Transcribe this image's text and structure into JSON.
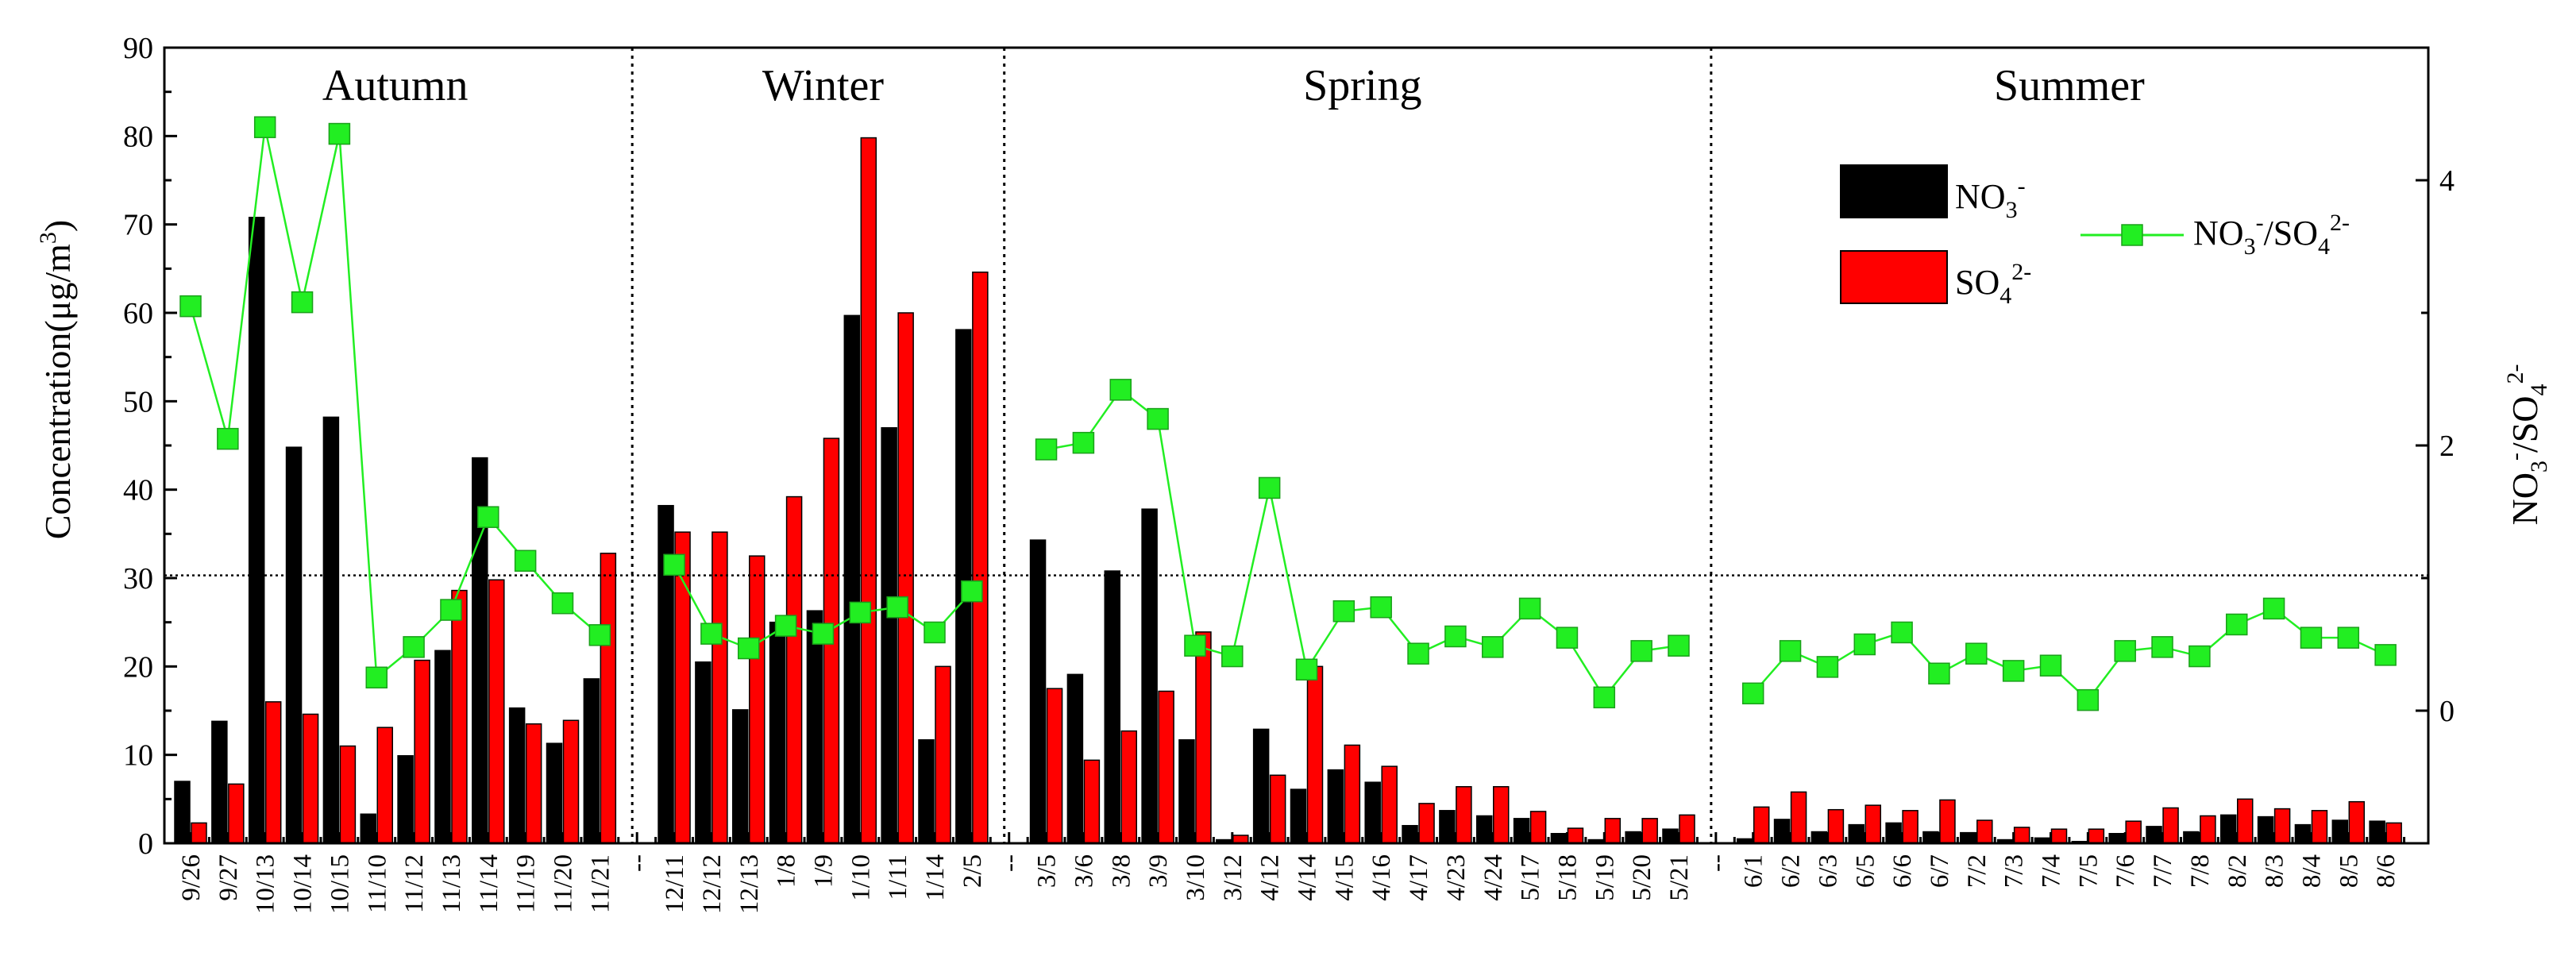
{
  "chart_data": {
    "type": "bar",
    "categories": [
      "9/26",
      "9/27",
      "10/13",
      "10/14",
      "10/15",
      "11/10",
      "11/12",
      "11/13",
      "11/14",
      "11/19",
      "11/20",
      "11/21",
      "--",
      "12/11",
      "12/12",
      "12/13",
      "1/8",
      "1/9",
      "1/10",
      "1/11",
      "1/14",
      "2/5",
      "--",
      "3/5",
      "3/6",
      "3/8",
      "3/9",
      "3/10",
      "3/12",
      "4/12",
      "4/14",
      "4/15",
      "4/16",
      "4/17",
      "4/23",
      "4/24",
      "5/17",
      "5/18",
      "5/19",
      "5/20",
      "5/21",
      "--",
      "6/1",
      "6/2",
      "6/3",
      "6/5",
      "6/6",
      "6/7",
      "7/2",
      "7/3",
      "7/4",
      "7/5",
      "7/6",
      "7/7",
      "7/8",
      "8/2",
      "8/3",
      "8/4",
      "8/5",
      "8/6"
    ],
    "series": [
      {
        "name": "NO3-",
        "axis": "left",
        "kind": "bar",
        "color": "#000000",
        "values": [
          7,
          13.8,
          70.8,
          44.8,
          48.2,
          3.3,
          9.9,
          21.8,
          43.6,
          15.3,
          11.3,
          18.6,
          null,
          38.2,
          20.5,
          15.1,
          25,
          26.3,
          59.7,
          47,
          11.7,
          58.1,
          null,
          34.3,
          19.1,
          30.8,
          37.8,
          11.7,
          0.4,
          12.9,
          6.1,
          8.3,
          6.9,
          2,
          3.7,
          3.1,
          2.8,
          1.1,
          0.4,
          1.3,
          1.6,
          null,
          0.5,
          2.7,
          1.3,
          2.1,
          2.3,
          1.3,
          1.2,
          0.4,
          0.6,
          0.2,
          1.1,
          1.9,
          1.3,
          3.2,
          3,
          2.1,
          2.6,
          2.5
        ]
      },
      {
        "name": "SO42-",
        "axis": "left",
        "kind": "bar",
        "color": "#ff0000",
        "values": [
          2.3,
          6.7,
          16,
          14.6,
          11,
          13.1,
          20.7,
          28.6,
          29.8,
          13.5,
          13.9,
          32.8,
          null,
          35.2,
          35.2,
          32.5,
          39.2,
          45.8,
          79.8,
          60,
          20,
          64.6,
          null,
          17.5,
          9.4,
          12.7,
          17.2,
          23.9,
          0.9,
          7.7,
          20,
          11.1,
          8.7,
          4.5,
          6.4,
          6.4,
          3.6,
          1.7,
          2.8,
          2.8,
          3.2,
          null,
          4.1,
          5.8,
          3.8,
          4.3,
          3.7,
          4.9,
          2.6,
          1.8,
          1.6,
          1.6,
          2.5,
          4,
          3.1,
          5,
          3.9,
          3.7,
          4.7,
          2.3
        ]
      },
      {
        "name": "NO3-/SO42-",
        "axis": "right",
        "kind": "line",
        "color": "#22ee22",
        "segments": [
          [
            0,
            11
          ],
          [
            13,
            21
          ],
          [
            23,
            40
          ],
          [
            42,
            59
          ]
        ],
        "values": [
          3.05,
          2.05,
          4.4,
          3.08,
          4.35,
          0.25,
          0.48,
          0.76,
          1.46,
          1.13,
          0.81,
          0.57,
          null,
          1.1,
          0.58,
          0.47,
          0.64,
          0.58,
          0.74,
          0.78,
          0.59,
          0.9,
          null,
          1.97,
          2.02,
          2.42,
          2.2,
          0.49,
          0.41,
          1.68,
          0.31,
          0.75,
          0.78,
          0.43,
          0.56,
          0.48,
          0.77,
          0.55,
          0.1,
          0.45,
          0.49,
          null,
          0.13,
          0.45,
          0.33,
          0.5,
          0.59,
          0.28,
          0.43,
          0.3,
          0.34,
          0.08,
          0.45,
          0.48,
          0.41,
          0.65,
          0.77,
          0.55,
          0.55,
          0.42
        ]
      }
    ],
    "seasons": [
      {
        "label": "Autumn",
        "from": 0,
        "to": 11
      },
      {
        "label": "Winter",
        "from": 13,
        "to": 21
      },
      {
        "label": "Spring",
        "from": 23,
        "to": 40
      },
      {
        "label": "Summer",
        "from": 42,
        "to": 59
      }
    ],
    "ylabel_left": "Concentration(μg/m3)",
    "ylim_left": [
      0,
      90
    ],
    "yticks_left": [
      0,
      10,
      20,
      30,
      40,
      50,
      60,
      70,
      80,
      90
    ],
    "ylabel_right": "NO3-/SO42-",
    "ylim_right": [
      -1,
      5
    ],
    "yticks_right": [
      0,
      2,
      4
    ],
    "reference_line_left": 30.3,
    "grid": false,
    "legend_position": "top-right"
  }
}
